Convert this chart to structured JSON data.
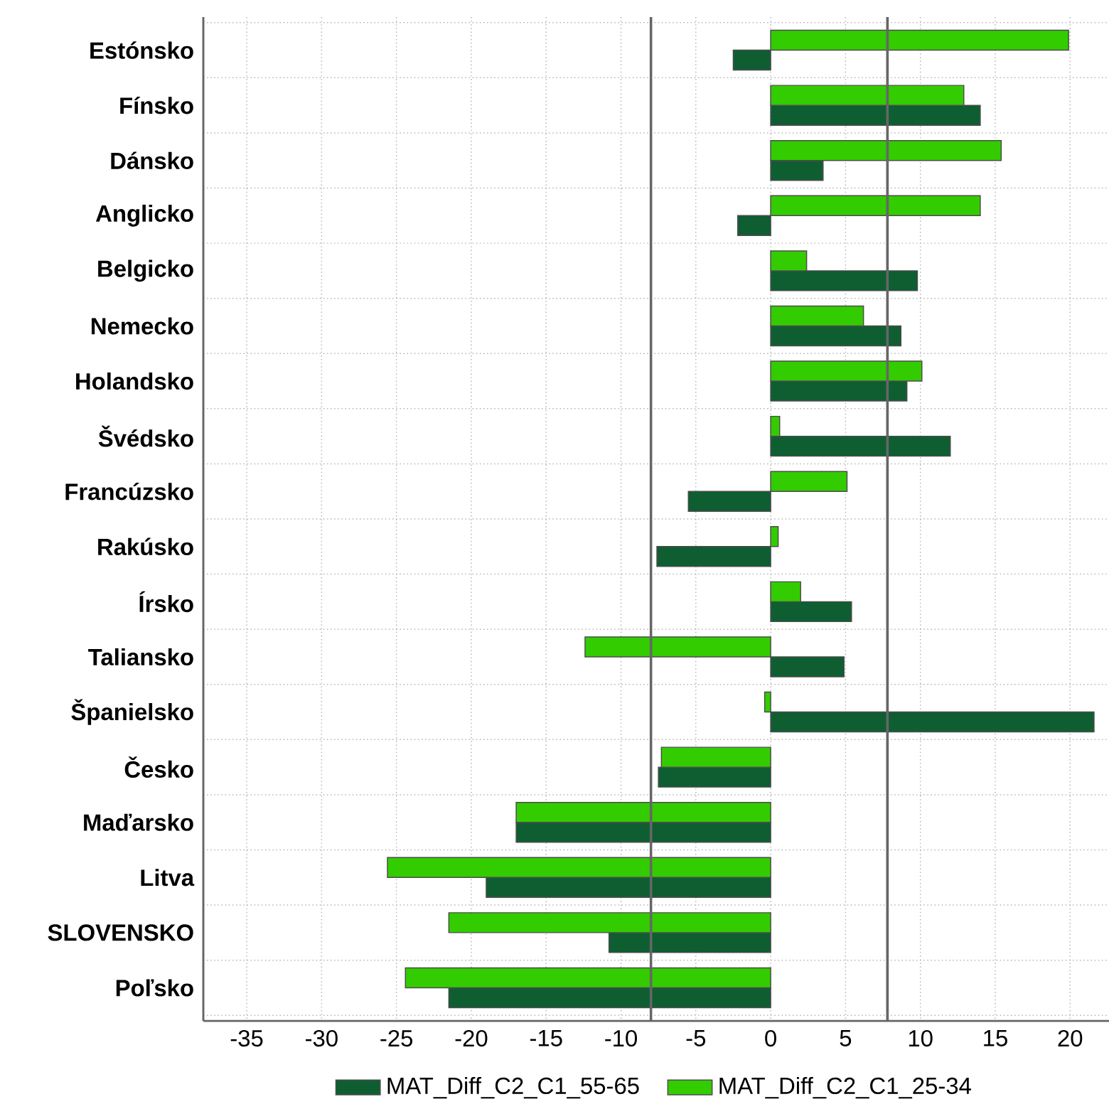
{
  "chart_data": {
    "type": "bar",
    "orientation": "horizontal",
    "categories": [
      "Estónsko",
      "Fínsko",
      "Dánsko",
      "Anglicko",
      "Belgicko",
      "Nemecko",
      "Holandsko",
      "Švédsko",
      "Francúzsko",
      "Rakúsko",
      "Írsko",
      "Taliansko",
      "Španielsko",
      "Česko",
      "Maďarsko",
      "Litva",
      "SLOVENSKO",
      "Poľsko"
    ],
    "series": [
      {
        "name": "MAT_Diff_C2_C1_55-65",
        "color": "#0e5e32",
        "values": [
          -2.5,
          14.0,
          3.5,
          -2.2,
          9.8,
          8.7,
          9.1,
          12.0,
          -5.5,
          -7.6,
          5.4,
          4.9,
          21.6,
          -7.5,
          -17.0,
          -19.0,
          -10.8,
          -21.5
        ]
      },
      {
        "name": "MAT_Diff_C2_C1_25-34",
        "color": "#33cc00",
        "values": [
          19.9,
          12.9,
          15.4,
          14.0,
          2.4,
          6.2,
          10.1,
          0.6,
          5.1,
          0.5,
          2.0,
          -12.4,
          -0.4,
          -7.3,
          -17.0,
          -25.6,
          -21.5,
          -24.4
        ]
      }
    ],
    "xlim": [
      -37.9,
      22.6
    ],
    "xticks": [
      -35,
      -30,
      -25,
      -20,
      -15,
      -10,
      -5,
      0,
      5,
      10,
      15,
      20
    ],
    "ref_lines": [
      {
        "axis": "x",
        "value": -8,
        "color": "#666666"
      },
      {
        "axis": "x",
        "value": 7.8,
        "color": "#666666"
      }
    ],
    "grid": true,
    "legend": "bottom"
  }
}
